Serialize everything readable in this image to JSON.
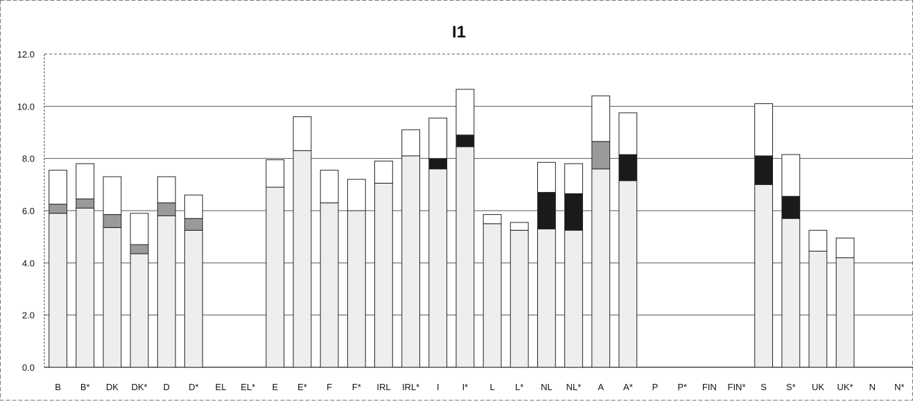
{
  "chart_data": {
    "type": "bar",
    "stacked": true,
    "title": "I1",
    "xlabel": "",
    "ylabel": "",
    "ylim": [
      0,
      12
    ],
    "yticks": [
      "0.0",
      "2.0",
      "4.0",
      "6.0",
      "8.0",
      "10.0",
      "12.0"
    ],
    "grid": true,
    "legend": "none",
    "categories": [
      "B",
      "B*",
      "DK",
      "DK*",
      "D",
      "D*",
      "EL",
      "EL*",
      "E",
      "E*",
      "F",
      "F*",
      "IRL",
      "IRL*",
      "I",
      "I*",
      "L",
      "L*",
      "NL",
      "NL*",
      "A",
      "A*",
      "P",
      "P*",
      "FIN",
      "FIN*",
      "S",
      "S*",
      "UK",
      "UK*",
      "N",
      "N*"
    ],
    "series": [
      {
        "values": [
          5.9,
          6.1,
          5.35,
          4.35,
          5.8,
          5.25,
          0,
          0,
          6.9,
          8.3,
          6.3,
          6.0,
          7.05,
          8.1,
          7.6,
          8.45,
          5.5,
          5.25,
          5.3,
          5.25,
          7.6,
          7.15,
          0,
          0,
          0,
          0,
          7.0,
          5.7,
          4.45,
          4.2,
          0,
          0
        ],
        "color": "#eeeeee"
      },
      {
        "values": [
          0.35,
          0.35,
          0.5,
          0.35,
          0.5,
          0.45,
          0,
          0,
          0,
          0,
          0,
          0,
          0,
          0,
          0,
          0,
          0,
          0,
          0,
          0,
          1.05,
          0,
          0,
          0,
          0,
          0,
          0,
          0,
          0,
          0,
          0,
          0
        ],
        "color": "#9a9a9a"
      },
      {
        "values": [
          0,
          0,
          0,
          0,
          0,
          0,
          0,
          0,
          0,
          0,
          0,
          0,
          0,
          0,
          0.4,
          0.45,
          0,
          0,
          1.4,
          1.4,
          0,
          1.0,
          0,
          0,
          0,
          0,
          1.1,
          0.85,
          0,
          0,
          0,
          0
        ],
        "color": "#1a1a1a"
      },
      {
        "values": [
          1.3,
          1.35,
          1.45,
          1.2,
          1.0,
          0.9,
          0,
          0,
          1.05,
          1.3,
          1.25,
          1.2,
          0.85,
          1.0,
          1.55,
          1.75,
          0.35,
          0.3,
          1.15,
          1.15,
          1.75,
          1.6,
          0,
          0,
          0,
          0,
          2.0,
          1.6,
          0.8,
          0.75,
          0,
          0
        ],
        "color": "#ffffff"
      }
    ]
  }
}
